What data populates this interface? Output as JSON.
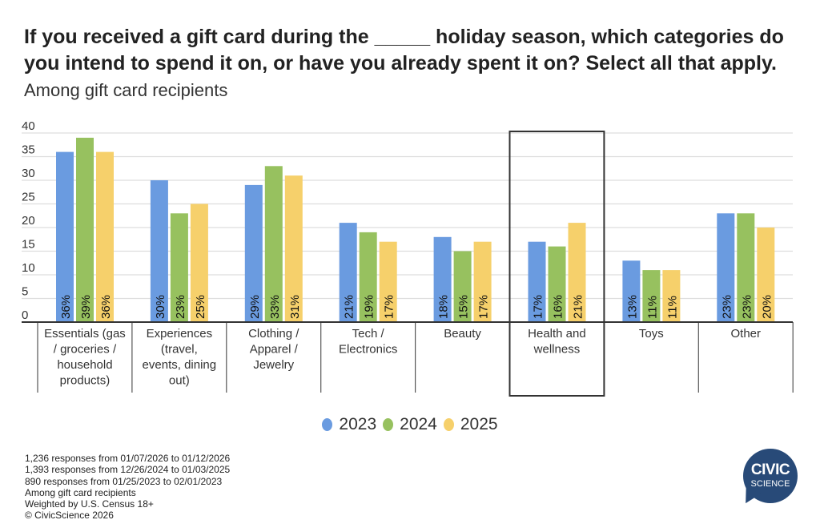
{
  "title": "If you received a gift card during the _____ holiday season, which categories do you intend to spend it on, or have you already spent it on? Select all that apply.",
  "subtitle": "Among gift card recipients",
  "chart_data": {
    "type": "bar",
    "categories": [
      "Essentials (gas / groceries / household products)",
      "Experiences (travel, events, dining out)",
      "Clothing / Apparel / Jewelry",
      "Tech / Electronics",
      "Beauty",
      "Health and wellness",
      "Toys",
      "Other"
    ],
    "series": [
      {
        "name": "2023",
        "color": "#6a9be0",
        "values": [
          36,
          30,
          29,
          21,
          18,
          17,
          13,
          23
        ]
      },
      {
        "name": "2024",
        "color": "#97c15f",
        "values": [
          39,
          23,
          33,
          19,
          15,
          16,
          11,
          23
        ]
      },
      {
        "name": "2025",
        "color": "#f6d06b",
        "values": [
          36,
          25,
          31,
          17,
          17,
          21,
          11,
          20
        ]
      }
    ],
    "yticks": [
      0,
      5,
      10,
      15,
      20,
      25,
      30,
      35,
      40
    ],
    "ylim": [
      0,
      40
    ],
    "grid": true,
    "legend": "bottom",
    "highlighted_category": "Health and wellness",
    "data_label_suffix": "%"
  },
  "notes": [
    "1,236 responses from 01/07/2026 to 01/12/2026",
    "1,393 responses from 12/26/2024 to 01/03/2025",
    "890 responses from 01/25/2023 to 02/01/2023",
    "Among gift card recipients",
    "Weighted by U.S. Census 18+",
    "© CivicScience 2026"
  ],
  "logo": {
    "line1": "CIVIC",
    "line2": "SCIENCE"
  }
}
